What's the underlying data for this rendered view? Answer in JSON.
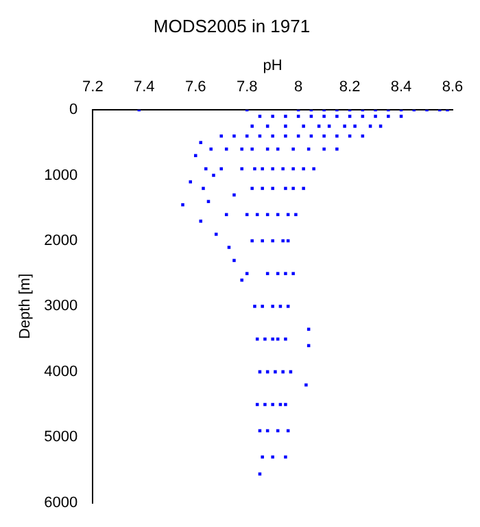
{
  "chart_data": {
    "type": "scatter",
    "title": "MODS2005 in 1971",
    "xlabel": "pH",
    "ylabel": "Depth [m]",
    "xlim": [
      7.2,
      8.6
    ],
    "xticks": [
      7.2,
      7.4,
      7.6,
      7.8,
      8,
      8.2,
      8.4,
      8.6
    ],
    "ylim": [
      6000,
      0
    ],
    "yticks": [
      0,
      1000,
      2000,
      3000,
      4000,
      5000,
      6000
    ],
    "grid": false,
    "legend": false,
    "marker": "square",
    "series": [
      {
        "color": "#0000ff",
        "x": [
          7.38,
          7.8,
          8.0,
          8.05,
          8.1,
          8.15,
          8.2,
          8.25,
          8.3,
          8.35,
          8.4,
          8.45,
          8.5,
          8.55,
          8.58,
          7.85,
          7.9,
          7.95,
          8.0,
          8.05,
          8.1,
          8.15,
          8.2,
          8.25,
          8.3,
          8.35,
          8.4,
          7.82,
          7.88,
          7.95,
          8.02,
          8.08,
          8.12,
          8.18,
          8.22,
          8.28,
          8.32,
          7.7,
          7.75,
          7.8,
          7.85,
          7.9,
          7.95,
          8.0,
          8.05,
          8.1,
          8.15,
          8.2,
          8.25,
          7.62,
          7.6,
          7.64,
          7.66,
          7.72,
          7.78,
          7.82,
          7.88,
          7.92,
          7.98,
          8.04,
          8.1,
          8.15,
          7.58,
          7.63,
          7.67,
          7.7,
          7.78,
          7.83,
          7.86,
          7.9,
          7.94,
          7.98,
          8.02,
          8.06,
          7.55,
          7.65,
          7.75,
          7.82,
          7.86,
          7.9,
          7.95,
          7.98,
          8.02,
          7.62,
          7.68,
          7.72,
          7.8,
          7.84,
          7.88,
          7.92,
          7.96,
          7.99,
          7.73,
          7.75,
          7.78,
          7.82,
          7.86,
          7.9,
          7.94,
          7.96,
          7.8,
          7.88,
          7.92,
          7.95,
          7.98,
          7.83,
          7.86,
          7.9,
          7.93,
          7.96,
          8.04,
          7.84,
          7.87,
          7.9,
          7.92,
          7.95,
          8.04,
          7.85,
          7.88,
          7.91,
          7.94,
          7.97,
          8.03,
          7.84,
          7.87,
          7.9,
          7.93,
          7.95,
          7.85,
          7.88,
          7.92,
          7.96,
          7.86,
          7.9,
          7.95,
          7.85
        ],
        "values": [
          0,
          0,
          0,
          0,
          0,
          0,
          0,
          0,
          0,
          0,
          0,
          0,
          0,
          0,
          0,
          100,
          100,
          100,
          100,
          100,
          100,
          100,
          100,
          100,
          100,
          100,
          100,
          250,
          250,
          250,
          250,
          250,
          250,
          250,
          250,
          250,
          250,
          400,
          400,
          400,
          400,
          400,
          400,
          400,
          400,
          400,
          400,
          400,
          400,
          500,
          700,
          900,
          600,
          600,
          600,
          600,
          600,
          600,
          600,
          600,
          600,
          600,
          1100,
          1200,
          1000,
          900,
          900,
          900,
          900,
          900,
          900,
          900,
          900,
          900,
          1450,
          1400,
          1300,
          1200,
          1200,
          1200,
          1200,
          1200,
          1200,
          1700,
          1900,
          1600,
          1600,
          1600,
          1600,
          1600,
          1600,
          1600,
          2100,
          2300,
          2600,
          2000,
          2000,
          2000,
          2000,
          2000,
          2500,
          2500,
          2500,
          2500,
          2500,
          3000,
          3000,
          3000,
          3000,
          3000,
          3350,
          3500,
          3500,
          3500,
          3500,
          3500,
          3600,
          4000,
          4000,
          4000,
          4000,
          4000,
          4200,
          4500,
          4500,
          4500,
          4500,
          4500,
          4900,
          4900,
          4900,
          4900,
          5300,
          5300,
          5300,
          5560
        ]
      }
    ]
  }
}
